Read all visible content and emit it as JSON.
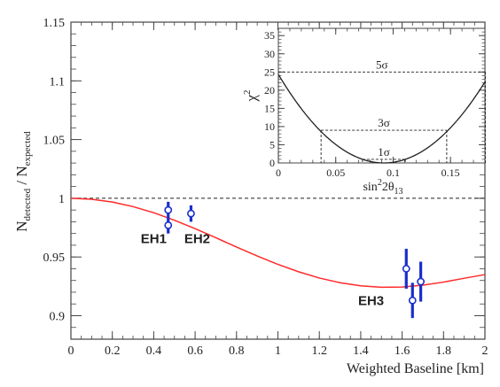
{
  "chart_data": [
    {
      "type": "scatter",
      "xlabel": "Weighted Baseline [km]",
      "ylabel_main": "N",
      "ylabel_sub1": "detected",
      "ylabel_mid": " / N",
      "ylabel_sub2": "expected",
      "xlim": [
        0,
        2
      ],
      "ylim": [
        0.88,
        1.15
      ],
      "xticks": [
        0,
        0.2,
        0.4,
        0.6,
        0.8,
        1,
        1.2,
        1.4,
        1.6,
        1.8,
        2
      ],
      "xtick_labels": [
        "0",
        "0.2",
        "0.4",
        "0.6",
        "0.8",
        "1",
        "1.2",
        "1.4",
        "1.6",
        "1.8",
        "2"
      ],
      "yticks": [
        0.9,
        0.95,
        1,
        1.05,
        1.1,
        1.15
      ],
      "ytick_labels": [
        "0.9",
        "0.95",
        "1",
        "1.05",
        "1.1",
        "1.15"
      ],
      "reference_line": 1.0,
      "colors": {
        "curve": "#ff2a2a",
        "points": "#1a2ecc",
        "axes": "#444444"
      },
      "curve": {
        "x": [
          0,
          0.1,
          0.2,
          0.3,
          0.4,
          0.5,
          0.6,
          0.7,
          0.8,
          0.9,
          1.0,
          1.1,
          1.2,
          1.3,
          1.4,
          1.5,
          1.6,
          1.7,
          1.8,
          1.9,
          2.0
        ],
        "y": [
          1.0,
          0.9992,
          0.9968,
          0.9929,
          0.9877,
          0.9813,
          0.9741,
          0.9664,
          0.9585,
          0.9508,
          0.9437,
          0.9374,
          0.9321,
          0.9281,
          0.9254,
          0.9242,
          0.9244,
          0.926,
          0.9286,
          0.9319,
          0.935
        ]
      },
      "points": [
        {
          "x": 0.47,
          "y": 0.99,
          "err": 0.007
        },
        {
          "x": 0.47,
          "y": 0.977,
          "err": 0.007
        },
        {
          "x": 0.58,
          "y": 0.987,
          "err": 0.007
        },
        {
          "x": 1.62,
          "y": 0.94,
          "err": 0.017
        },
        {
          "x": 1.65,
          "y": 0.913,
          "err": 0.015
        },
        {
          "x": 1.69,
          "y": 0.929,
          "err": 0.017
        }
      ],
      "annotations": [
        {
          "text": "EH1",
          "x": 0.4,
          "y": 0.962
        },
        {
          "text": "EH2",
          "x": 0.61,
          "y": 0.962
        },
        {
          "text": "EH3",
          "x": 1.45,
          "y": 0.909
        }
      ]
    },
    {
      "type": "line",
      "xlabel_main": "sin",
      "xlabel_sup": "2",
      "xlabel_mid": "2θ",
      "xlabel_sub": "13",
      "ylabel_main": "χ",
      "ylabel_sup": "2",
      "xlim": [
        0,
        0.18
      ],
      "ylim": [
        0,
        37
      ],
      "xticks": [
        0,
        0.05,
        0.1,
        0.15
      ],
      "xtick_labels": [
        "0",
        "0.05",
        "0.1",
        "0.15"
      ],
      "yticks": [
        0,
        5,
        10,
        15,
        20,
        25,
        30,
        35
      ],
      "ytick_labels": [
        "0",
        "5",
        "10",
        "15",
        "20",
        "25",
        "30",
        "35"
      ],
      "parabola": {
        "center": 0.092,
        "min": 0,
        "coefficient": 0.1
      },
      "curve_color": "#222222",
      "levels": [
        {
          "label": "1σ",
          "chi2": 1,
          "x_range": [
            0.0733,
            0.1106
          ]
        },
        {
          "label": "3σ",
          "chi2": 9,
          "x_range": [
            0.0372,
            0.1467
          ]
        },
        {
          "label": "5σ",
          "chi2": 25,
          "x_range": [
            0.0,
            0.1804
          ]
        }
      ]
    }
  ]
}
